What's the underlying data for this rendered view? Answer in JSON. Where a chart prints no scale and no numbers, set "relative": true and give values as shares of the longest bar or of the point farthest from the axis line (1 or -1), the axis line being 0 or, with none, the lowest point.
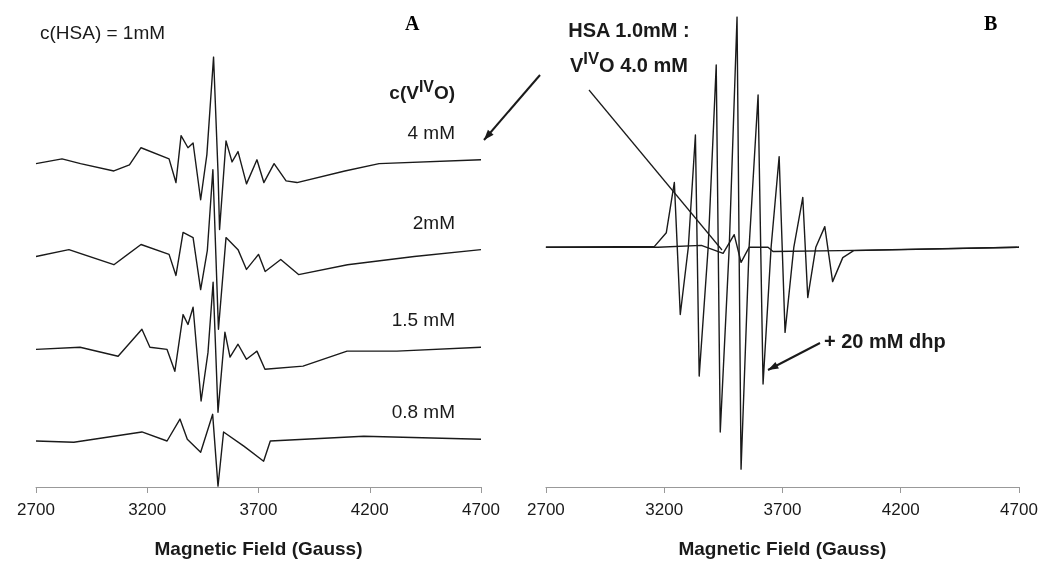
{
  "chart_data": [
    {
      "type": "line",
      "title": "A",
      "xlabel": "Magnetic Field (Gauss)",
      "legend_title": "c(V$^{IV}$O)",
      "annotations": [
        "c(HSA) = 1mM"
      ],
      "relative": true,
      "xlim": [
        2700,
        4700
      ],
      "xticks": [
        2700,
        3200,
        3700,
        4200,
        4700
      ],
      "tick_labels": "x",
      "legend": "right",
      "marker": "none",
      "line_style": "solid",
      "grid": false,
      "series": [
        {
          "name": "4 mM",
          "color": "#1a1a1a",
          "x": [
            2700,
            2817,
            2900,
            3050,
            3120,
            3172,
            3298,
            3329,
            3352,
            3383,
            3406,
            3440,
            3468,
            3498,
            3518,
            3525,
            3554,
            3581,
            3608,
            3646,
            3693,
            3724,
            3770,
            3824,
            3873,
            4088,
            4242,
            4700
          ],
          "values": [
            0.752,
            0.763,
            0.752,
            0.735,
            0.749,
            0.789,
            0.763,
            0.708,
            0.817,
            0.789,
            0.8,
            0.668,
            0.773,
            1.0,
            0.733,
            0.599,
            0.805,
            0.756,
            0.78,
            0.705,
            0.761,
            0.708,
            0.752,
            0.712,
            0.708,
            0.735,
            0.752,
            0.761
          ]
        },
        {
          "name": "2mM",
          "color": "#1a1a1a",
          "x": [
            2700,
            2848,
            3050,
            3172,
            3298,
            3329,
            3361,
            3406,
            3440,
            3470,
            3495,
            3520,
            3554,
            3608,
            3646,
            3700,
            3730,
            3800,
            3880,
            4100,
            4400,
            4700
          ],
          "values": [
            0.536,
            0.552,
            0.517,
            0.564,
            0.541,
            0.492,
            0.592,
            0.58,
            0.459,
            0.55,
            0.738,
            0.367,
            0.58,
            0.552,
            0.506,
            0.541,
            0.501,
            0.529,
            0.494,
            0.517,
            0.536,
            0.552
          ]
        },
        {
          "name": "1.5 mM",
          "color": "#1a1a1a",
          "x": [
            2700,
            2898,
            3069,
            3176,
            3212,
            3289,
            3324,
            3361,
            3383,
            3406,
            3442,
            3473,
            3496,
            3518,
            3549,
            3572,
            3608,
            3646,
            3693,
            3729,
            3900,
            4098,
            4322,
            4700
          ],
          "values": [
            0.32,
            0.325,
            0.304,
            0.367,
            0.325,
            0.32,
            0.269,
            0.401,
            0.378,
            0.418,
            0.2,
            0.313,
            0.476,
            0.174,
            0.36,
            0.302,
            0.332,
            0.297,
            0.316,
            0.274,
            0.281,
            0.316,
            0.316,
            0.325
          ]
        },
        {
          "name": "0.8 mM",
          "color": "#1a1a1a",
          "x": [
            2700,
            2870,
            3176,
            3289,
            3347,
            3380,
            3440,
            3494,
            3518,
            3543,
            3634,
            3723,
            3753,
            4173,
            4700
          ],
          "values": [
            0.107,
            0.104,
            0.128,
            0.107,
            0.158,
            0.111,
            0.081,
            0.169,
            0.002,
            0.128,
            0.095,
            0.06,
            0.107,
            0.118,
            0.111
          ]
        }
      ]
    },
    {
      "type": "line",
      "title": "B",
      "xlabel": "Magnetic Field (Gauss)",
      "relative": true,
      "xlim": [
        2700,
        4700
      ],
      "xticks": [
        2700,
        3200,
        3700,
        4200,
        4700
      ],
      "tick_labels": "x",
      "legend": false,
      "marker": "none",
      "line_style": "solid",
      "grid": false,
      "series": [
        {
          "name": "+ 20 mM dhp",
          "color": "#1a1a1a",
          "x": [
            2700,
            3159,
            3209,
            3243,
            3268,
            3302,
            3332,
            3348,
            3386,
            3420,
            3437,
            3475,
            3508,
            3525,
            3559,
            3597,
            3618,
            3652,
            3686,
            3711,
            3748,
            3786,
            3807,
            3841,
            3879,
            3912,
            3955,
            4001,
            4700
          ],
          "values": [
            0.51,
            0.512,
            0.541,
            0.648,
            0.367,
            0.51,
            0.749,
            0.236,
            0.51,
            0.898,
            0.117,
            0.51,
            1.0,
            0.038,
            0.51,
            0.834,
            0.219,
            0.51,
            0.703,
            0.329,
            0.51,
            0.616,
            0.403,
            0.51,
            0.554,
            0.437,
            0.488,
            0.503,
            0.51
          ]
        },
        {
          "name": "HSA 1.0mM : V$^{IV}$O 4.0 mM",
          "color": "#1a1a1a",
          "x": [
            2700,
            3173,
            3357,
            3449,
            3496,
            3525,
            3559,
            3639,
            3660,
            3946,
            4700
          ],
          "values": [
            0.51,
            0.51,
            0.514,
            0.497,
            0.537,
            0.478,
            0.51,
            0.51,
            0.501,
            0.503,
            0.51
          ]
        }
      ]
    }
  ]
}
